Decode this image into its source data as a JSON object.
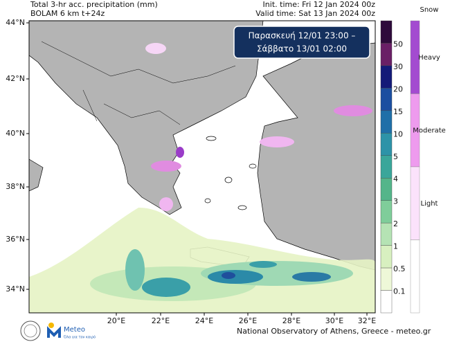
{
  "header": {
    "title": "Total 3-hr acc. precipitation (mm)",
    "subtitle": "BOLAM 6 km t+24z",
    "init_time": "Init. time: Fri 12 Jan 2024 00z",
    "valid_time": "Valid time: Sat 13 Jan 2024 00z"
  },
  "time_box": {
    "line1": "Παρασκευή 12/01 23:00 –",
    "line2": "Σάββατο 13/01 02:00"
  },
  "lat_labels": [
    "44°N",
    "42°N",
    "40°N",
    "38°N",
    "36°N",
    "34°N"
  ],
  "lon_labels": [
    "20°E",
    "22°E",
    "24°E",
    "26°E",
    "28°E",
    "30°E",
    "32°E"
  ],
  "precip_legend": [
    "50",
    "30",
    "20",
    "15",
    "10",
    "5",
    "4",
    "3",
    "2",
    "1",
    "0.5",
    "0.1"
  ],
  "snow_legend": {
    "title": "Snow",
    "labels": [
      "Heavy",
      "Moderate",
      "Light"
    ]
  },
  "logo": {
    "name": "Meteo",
    "tagline": "Όλα για τον καιρό"
  },
  "footer": "National Observatory of Athens, Greece - meteo.gr"
}
